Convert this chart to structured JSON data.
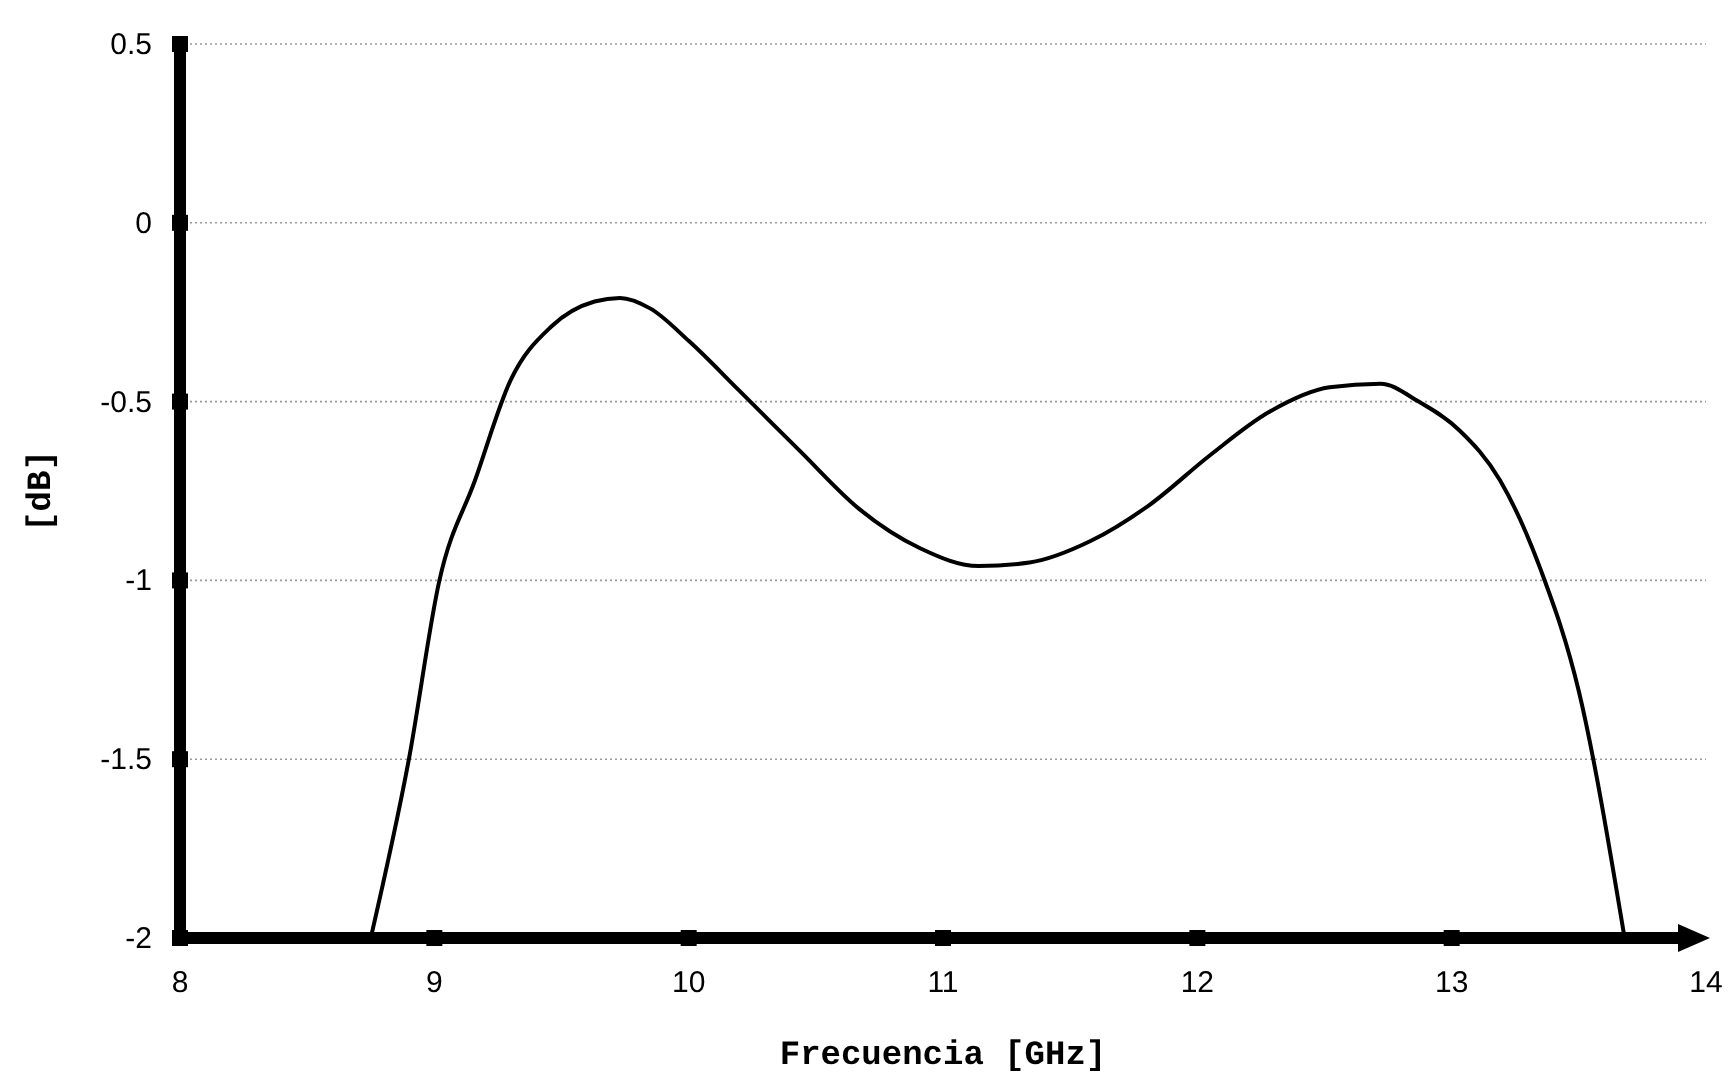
{
  "chart_data": {
    "type": "line",
    "xlabel": "Frecuencia [GHz]",
    "ylabel": "[dB]",
    "xlim": [
      8,
      14
    ],
    "ylim": [
      -2,
      0.5
    ],
    "xticks": [
      8,
      9,
      10,
      11,
      12,
      13,
      14
    ],
    "yticks": [
      -2,
      -1.5,
      -1,
      -0.5,
      0,
      0.5
    ],
    "grid": "y",
    "marker": "none",
    "line_style": "solid",
    "series": [
      {
        "color": "#000000",
        "x": [
          8.75,
          8.9,
          9.02,
          9.16,
          9.3,
          9.46,
          9.63,
          9.73,
          9.85,
          10.0,
          10.2,
          10.44,
          10.67,
          10.91,
          11.14,
          11.34,
          11.58,
          11.81,
          12.05,
          12.28,
          12.52,
          12.72,
          12.87,
          13.03,
          13.19,
          13.35,
          13.5,
          13.68
        ],
        "values": [
          -2,
          -1.5,
          -1.0,
          -0.72,
          -0.44,
          -0.29,
          -0.22,
          -0.21,
          -0.24,
          -0.33,
          -0.47,
          -0.64,
          -0.8,
          -0.91,
          -0.96,
          -0.95,
          -0.89,
          -0.79,
          -0.65,
          -0.53,
          -0.46,
          -0.45,
          -0.5,
          -0.58,
          -0.72,
          -0.97,
          -1.31,
          -2
        ]
      }
    ]
  }
}
